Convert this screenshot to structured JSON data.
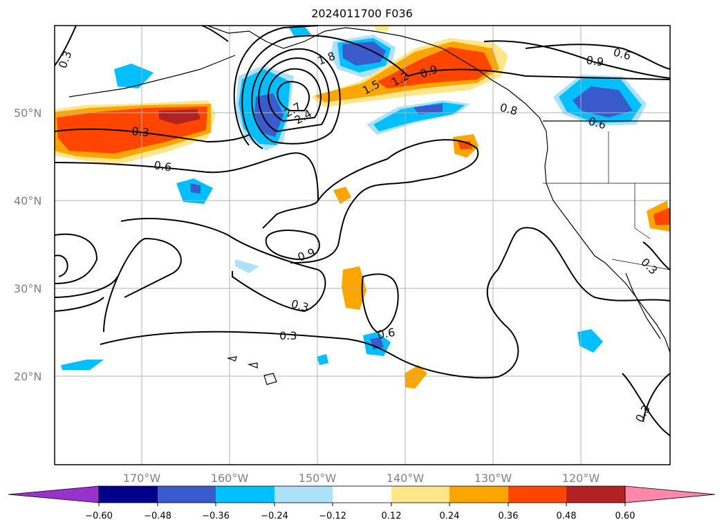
{
  "title": "2024011700 F036",
  "map": {
    "lat_labels": [
      "50°N",
      "40°N",
      "30°N",
      "20°N"
    ],
    "lon_labels": [
      "170°W",
      "160°W",
      "150°W",
      "140°W",
      "130°W",
      "120°W"
    ],
    "contour_labels": [
      "0.3",
      "1.8",
      "1.5",
      "1.2",
      "0.9",
      "0.6",
      "0.3",
      "0.6",
      "2.7",
      "2.4",
      "0.8",
      "0.6",
      "0.9",
      "0.9",
      "0.3",
      "0.3",
      "0.6",
      "0.3",
      "0.3"
    ]
  },
  "colorbar": {
    "ticks": [
      "−0.60",
      "−0.48",
      "−0.36",
      "−0.24",
      "−0.12",
      "0.12",
      "0.24",
      "0.36",
      "0.48",
      "0.60"
    ],
    "colors": [
      "#9932CC",
      "#00008B",
      "#3A5BCC",
      "#00BFFF",
      "#ADE1FA",
      "#FFFFFF",
      "#FFE68A",
      "#FFA500",
      "#FF4500",
      "#B22222",
      "#FF88AA"
    ]
  }
}
